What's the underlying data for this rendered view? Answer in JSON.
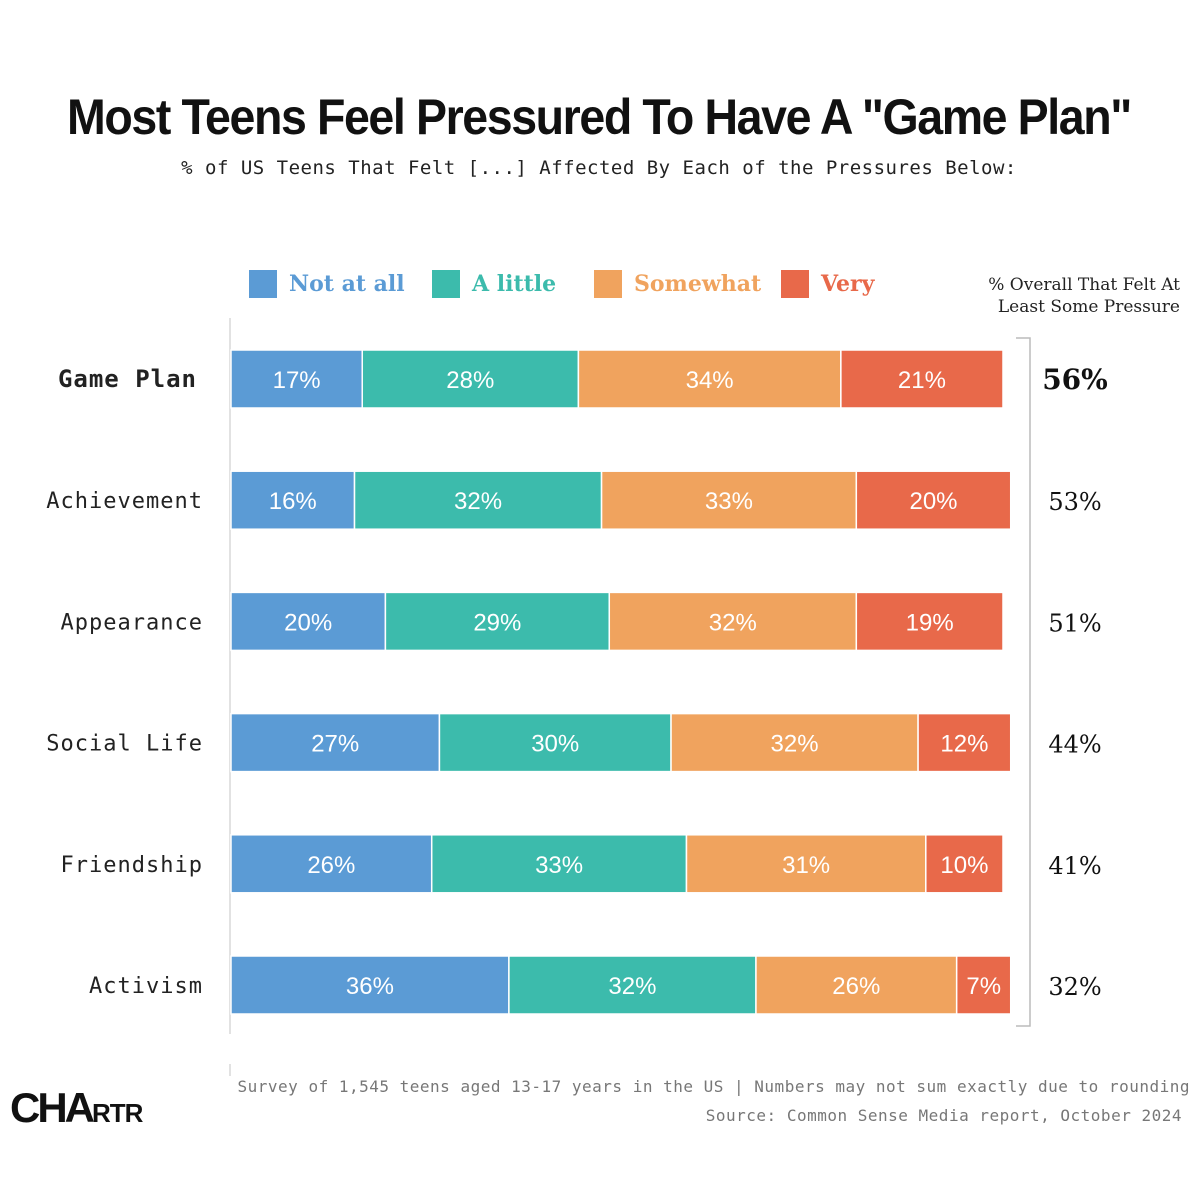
{
  "title": "Most Teens Feel Pressured To Have A \"Game Plan\"",
  "subtitle": "% of US Teens That Felt [...] Affected By Each of the Pressures Below:",
  "legend": [
    {
      "label": "Not at all",
      "color": "#5b9bd5"
    },
    {
      "label": "A little",
      "color": "#3cbbac"
    },
    {
      "label": "Somewhat",
      "color": "#f0a35e"
    },
    {
      "label": "Very",
      "color": "#e8694a"
    }
  ],
  "overall_header": {
    "line1": "% Overall That Felt At",
    "line2": "Least Some Pressure"
  },
  "chart_data": {
    "type": "bar",
    "orientation": "horizontal",
    "stacked": true,
    "title": "Most Teens Feel Pressured To Have A \"Game Plan\"",
    "subtitle": "% of US Teens That Felt [...] Affected By Each of the Pressures Below:",
    "categories": [
      "Game Plan",
      "Achievement",
      "Appearance",
      "Social Life",
      "Friendship",
      "Activism"
    ],
    "series": [
      {
        "name": "Not at all",
        "values": [
          17,
          16,
          20,
          27,
          26,
          36
        ]
      },
      {
        "name": "A little",
        "values": [
          28,
          32,
          29,
          30,
          33,
          32
        ]
      },
      {
        "name": "Somewhat",
        "values": [
          34,
          33,
          32,
          32,
          31,
          26
        ]
      },
      {
        "name": "Very",
        "values": [
          21,
          20,
          19,
          12,
          10,
          7
        ]
      }
    ],
    "value_suffix": "%",
    "overall": [
      "56%",
      "53%",
      "51%",
      "44%",
      "41%",
      "32%"
    ],
    "highlight_category": "Game Plan",
    "xlim": [
      0,
      100
    ]
  },
  "footer": {
    "note": "Survey of 1,545 teens aged 13-17 years in the US | Numbers may not sum exactly due to rounding",
    "source": "Source: Common Sense Media report, October 2024"
  },
  "logo": {
    "big1": "C",
    "big2": "HA",
    "small1": "R",
    "small2": "TR"
  }
}
